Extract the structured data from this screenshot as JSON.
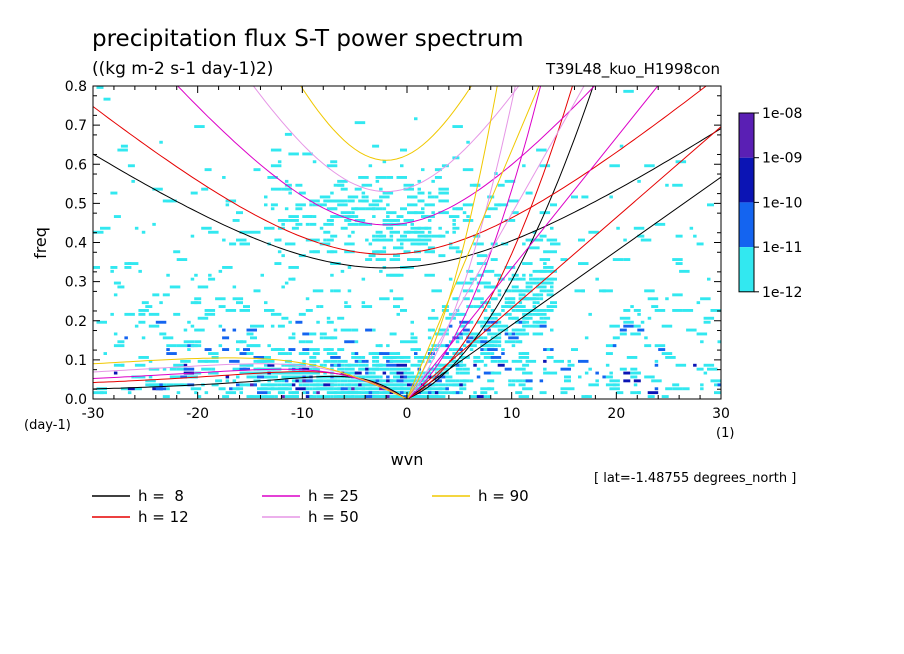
{
  "chart_data": {
    "type": "heatmap",
    "title": "precipitation flux S-T power spectrum",
    "subtitle": "((kg m-2 s-1 day-1)2)",
    "run_label": "T39L48_kuo_H1998con",
    "xlabel": "wvn",
    "ylabel": "freq",
    "x_unit": "(1)",
    "y_unit": "(day-1)",
    "xlim": [
      -30,
      30
    ],
    "ylim": [
      0,
      0.8
    ],
    "xticks": [
      -30,
      -20,
      -10,
      0,
      10,
      20,
      30
    ],
    "xtick_labels": [
      "-30",
      "-20",
      "-10",
      "0",
      "10",
      "20",
      "30"
    ],
    "yticks": [
      0,
      0.1,
      0.2,
      0.3,
      0.4,
      0.5,
      0.6,
      0.7,
      0.8
    ],
    "ytick_labels": [
      "0.0",
      "0.1",
      "0.2",
      "0.3",
      "0.4",
      "0.5",
      "0.6",
      "0.7",
      "0.8"
    ],
    "colorbar": {
      "labels": [
        "1e-08",
        "1e-09",
        "1e-10",
        "1e-11",
        "1e-12"
      ],
      "colors": [
        "#5a1fb4",
        "#0b14b4",
        "#1464f0",
        "#32e8f0"
      ]
    },
    "note": "[ lat=-1.48755 degrees_north ]",
    "legend": [
      {
        "label": "h =  8",
        "color": "#000000"
      },
      {
        "label": "h = 12",
        "color": "#e60000"
      },
      {
        "label": "h = 25",
        "color": "#dc00c8"
      },
      {
        "label": "h = 50",
        "color": "#e696e6"
      },
      {
        "label": "h = 90",
        "color": "#f0c800"
      }
    ],
    "dispersion_curves": [
      {
        "h": 8,
        "color": "#000000",
        "kelvin_slope": 0.0189,
        "ig_min_freq": 0.335,
        "rossby_freq_at_-30": 0.05,
        "rossby_peak_freq": 0.058,
        "rossby_peak_wvn": -7
      },
      {
        "h": 12,
        "color": "#e60000",
        "kelvin_slope": 0.0232,
        "ig_min_freq": 0.37,
        "rossby_freq_at_-30": 0.053,
        "rossby_peak_freq": 0.07,
        "rossby_peak_wvn": -10
      },
      {
        "h": 25,
        "color": "#dc00c8",
        "kelvin_slope": 0.0334,
        "ig_min_freq": 0.445,
        "rossby_freq_at_-30": 0.056,
        "rossby_peak_freq": 0.076,
        "rossby_peak_wvn": -12
      },
      {
        "h": 50,
        "color": "#e696e6",
        "kelvin_slope": 0.0473,
        "ig_min_freq": 0.53,
        "rossby_freq_at_-30": 0.058,
        "rossby_peak_freq": 0.09,
        "rossby_peak_wvn": -14
      },
      {
        "h": 90,
        "color": "#f0c800",
        "kelvin_slope": 0.0635,
        "ig_min_freq": 0.61,
        "rossby_freq_at_-30": 0.06,
        "rossby_peak_freq": 0.105,
        "rossby_peak_wvn": -17
      }
    ]
  }
}
